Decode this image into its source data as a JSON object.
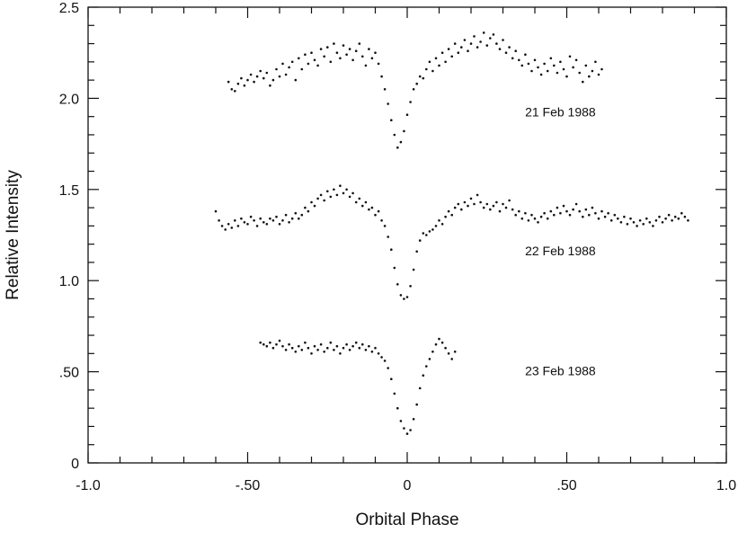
{
  "chart_data": {
    "type": "scatter",
    "title": "",
    "xlabel": "Orbital Phase",
    "ylabel": "Relative Intensity",
    "xlim": [
      -1.0,
      1.0
    ],
    "ylim": [
      0,
      2.5
    ],
    "grid": false,
    "x_ticks": [
      {
        "value": -1.0,
        "label": "-1.0"
      },
      {
        "value": -0.5,
        "label": "-.50"
      },
      {
        "value": 0,
        "label": "0"
      },
      {
        "value": 0.5,
        "label": ".50"
      },
      {
        "value": 1.0,
        "label": "1.0"
      }
    ],
    "y_ticks": [
      {
        "value": 0,
        "label": "0"
      },
      {
        "value": 0.5,
        "label": ".50"
      },
      {
        "value": 1.0,
        "label": "1.0"
      },
      {
        "value": 1.5,
        "label": "1.5"
      },
      {
        "value": 2.0,
        "label": "2.0"
      },
      {
        "value": 2.5,
        "label": "2.5"
      }
    ],
    "series": [
      {
        "name": "21 Feb 1988",
        "label_pos": [
          0.48,
          1.9
        ],
        "x": [
          -0.56,
          -0.55,
          -0.54,
          -0.53,
          -0.52,
          -0.51,
          -0.5,
          -0.49,
          -0.48,
          -0.47,
          -0.46,
          -0.45,
          -0.44,
          -0.43,
          -0.42,
          -0.41,
          -0.4,
          -0.39,
          -0.38,
          -0.37,
          -0.36,
          -0.35,
          -0.34,
          -0.33,
          -0.32,
          -0.31,
          -0.3,
          -0.29,
          -0.28,
          -0.27,
          -0.26,
          -0.25,
          -0.24,
          -0.23,
          -0.22,
          -0.21,
          -0.2,
          -0.19,
          -0.18,
          -0.17,
          -0.16,
          -0.15,
          -0.14,
          -0.13,
          -0.12,
          -0.11,
          -0.1,
          -0.09,
          -0.08,
          -0.07,
          -0.06,
          -0.05,
          -0.04,
          -0.03,
          -0.02,
          -0.01,
          0.0,
          0.01,
          0.02,
          0.03,
          0.04,
          0.05,
          0.06,
          0.07,
          0.08,
          0.09,
          0.1,
          0.11,
          0.12,
          0.13,
          0.14,
          0.15,
          0.16,
          0.17,
          0.18,
          0.19,
          0.2,
          0.21,
          0.22,
          0.23,
          0.24,
          0.25,
          0.26,
          0.27,
          0.28,
          0.29,
          0.3,
          0.31,
          0.32,
          0.33,
          0.34,
          0.35,
          0.36,
          0.37,
          0.38,
          0.39,
          0.4,
          0.41,
          0.42,
          0.43,
          0.44,
          0.45,
          0.46,
          0.47,
          0.48,
          0.49,
          0.5,
          0.51,
          0.52,
          0.53,
          0.54,
          0.55,
          0.56,
          0.57,
          0.58,
          0.59,
          0.6,
          0.61
        ],
        "y": [
          2.09,
          2.05,
          2.04,
          2.08,
          2.11,
          2.07,
          2.1,
          2.13,
          2.09,
          2.12,
          2.15,
          2.11,
          2.14,
          2.07,
          2.1,
          2.16,
          2.12,
          2.19,
          2.13,
          2.17,
          2.2,
          2.1,
          2.22,
          2.16,
          2.24,
          2.19,
          2.25,
          2.21,
          2.18,
          2.27,
          2.23,
          2.28,
          2.2,
          2.3,
          2.25,
          2.22,
          2.29,
          2.24,
          2.27,
          2.21,
          2.26,
          2.3,
          2.23,
          2.18,
          2.27,
          2.22,
          2.25,
          2.19,
          2.12,
          2.05,
          1.97,
          1.88,
          1.8,
          1.73,
          1.76,
          1.82,
          1.91,
          1.98,
          2.05,
          2.08,
          2.12,
          2.11,
          2.16,
          2.2,
          2.15,
          2.22,
          2.18,
          2.25,
          2.2,
          2.27,
          2.23,
          2.3,
          2.25,
          2.28,
          2.32,
          2.26,
          2.3,
          2.34,
          2.28,
          2.31,
          2.36,
          2.29,
          2.33,
          2.35,
          2.3,
          2.27,
          2.32,
          2.25,
          2.28,
          2.22,
          2.26,
          2.21,
          2.18,
          2.24,
          2.19,
          2.15,
          2.21,
          2.17,
          2.13,
          2.19,
          2.15,
          2.22,
          2.18,
          2.14,
          2.2,
          2.16,
          2.12,
          2.23,
          2.17,
          2.21,
          2.14,
          2.09,
          2.18,
          2.12,
          2.15,
          2.2,
          2.13,
          2.16
        ]
      },
      {
        "name": "22 Feb 1988",
        "label_pos": [
          0.48,
          1.14
        ],
        "x": [
          -0.6,
          -0.59,
          -0.58,
          -0.57,
          -0.56,
          -0.55,
          -0.54,
          -0.53,
          -0.52,
          -0.51,
          -0.5,
          -0.49,
          -0.48,
          -0.47,
          -0.46,
          -0.45,
          -0.44,
          -0.43,
          -0.42,
          -0.41,
          -0.4,
          -0.39,
          -0.38,
          -0.37,
          -0.36,
          -0.35,
          -0.34,
          -0.33,
          -0.32,
          -0.31,
          -0.3,
          -0.29,
          -0.28,
          -0.27,
          -0.26,
          -0.25,
          -0.24,
          -0.23,
          -0.22,
          -0.21,
          -0.2,
          -0.19,
          -0.18,
          -0.17,
          -0.16,
          -0.15,
          -0.14,
          -0.13,
          -0.12,
          -0.11,
          -0.1,
          -0.09,
          -0.08,
          -0.07,
          -0.06,
          -0.05,
          -0.04,
          -0.03,
          -0.02,
          -0.01,
          0.0,
          0.01,
          0.02,
          0.03,
          0.04,
          0.05,
          0.06,
          0.07,
          0.08,
          0.09,
          0.1,
          0.11,
          0.12,
          0.13,
          0.14,
          0.15,
          0.16,
          0.17,
          0.18,
          0.19,
          0.2,
          0.21,
          0.22,
          0.23,
          0.24,
          0.25,
          0.26,
          0.27,
          0.28,
          0.29,
          0.3,
          0.31,
          0.32,
          0.33,
          0.34,
          0.35,
          0.36,
          0.37,
          0.38,
          0.39,
          0.4,
          0.41,
          0.42,
          0.43,
          0.44,
          0.45,
          0.46,
          0.47,
          0.48,
          0.49,
          0.5,
          0.51,
          0.52,
          0.53,
          0.54,
          0.55,
          0.56,
          0.57,
          0.58,
          0.59,
          0.6,
          0.61,
          0.62,
          0.63,
          0.64,
          0.65,
          0.66,
          0.67,
          0.68,
          0.69,
          0.7,
          0.71,
          0.72,
          0.73,
          0.74,
          0.75,
          0.76,
          0.77,
          0.78,
          0.79,
          0.8,
          0.81,
          0.82,
          0.83,
          0.84,
          0.85,
          0.86,
          0.87,
          0.88
        ],
        "y": [
          1.38,
          1.33,
          1.3,
          1.28,
          1.31,
          1.29,
          1.33,
          1.3,
          1.34,
          1.32,
          1.31,
          1.35,
          1.33,
          1.3,
          1.34,
          1.32,
          1.31,
          1.34,
          1.33,
          1.35,
          1.31,
          1.33,
          1.36,
          1.32,
          1.34,
          1.37,
          1.34,
          1.36,
          1.4,
          1.38,
          1.43,
          1.41,
          1.45,
          1.47,
          1.44,
          1.49,
          1.46,
          1.5,
          1.47,
          1.52,
          1.48,
          1.5,
          1.46,
          1.48,
          1.43,
          1.45,
          1.41,
          1.43,
          1.39,
          1.4,
          1.36,
          1.38,
          1.33,
          1.3,
          1.24,
          1.17,
          1.07,
          0.98,
          0.92,
          0.9,
          0.91,
          0.97,
          1.06,
          1.16,
          1.22,
          1.26,
          1.25,
          1.27,
          1.28,
          1.3,
          1.33,
          1.31,
          1.35,
          1.38,
          1.36,
          1.4,
          1.42,
          1.39,
          1.43,
          1.41,
          1.45,
          1.42,
          1.47,
          1.43,
          1.4,
          1.42,
          1.39,
          1.41,
          1.43,
          1.38,
          1.42,
          1.4,
          1.44,
          1.39,
          1.36,
          1.38,
          1.34,
          1.37,
          1.33,
          1.36,
          1.34,
          1.32,
          1.35,
          1.37,
          1.34,
          1.38,
          1.36,
          1.4,
          1.37,
          1.41,
          1.38,
          1.36,
          1.39,
          1.42,
          1.38,
          1.35,
          1.39,
          1.36,
          1.4,
          1.37,
          1.34,
          1.38,
          1.35,
          1.37,
          1.33,
          1.36,
          1.34,
          1.32,
          1.35,
          1.31,
          1.34,
          1.32,
          1.3,
          1.33,
          1.31,
          1.34,
          1.32,
          1.3,
          1.33,
          1.35,
          1.32,
          1.34,
          1.36,
          1.33,
          1.35,
          1.34,
          1.37,
          1.35,
          1.33
        ]
      },
      {
        "name": "23 Feb 1988",
        "label_pos": [
          0.48,
          0.48
        ],
        "x": [
          -0.46,
          -0.45,
          -0.44,
          -0.43,
          -0.42,
          -0.41,
          -0.4,
          -0.39,
          -0.38,
          -0.37,
          -0.36,
          -0.35,
          -0.34,
          -0.33,
          -0.32,
          -0.31,
          -0.3,
          -0.29,
          -0.28,
          -0.27,
          -0.26,
          -0.25,
          -0.24,
          -0.23,
          -0.22,
          -0.21,
          -0.2,
          -0.19,
          -0.18,
          -0.17,
          -0.16,
          -0.15,
          -0.14,
          -0.13,
          -0.12,
          -0.11,
          -0.1,
          -0.09,
          -0.08,
          -0.07,
          -0.06,
          -0.05,
          -0.04,
          -0.03,
          -0.02,
          -0.01,
          0.0,
          0.01,
          0.02,
          0.03,
          0.04,
          0.05,
          0.06,
          0.07,
          0.08,
          0.09,
          0.1,
          0.11,
          0.12,
          0.13,
          0.14,
          0.15
        ],
        "y": [
          0.66,
          0.65,
          0.64,
          0.66,
          0.63,
          0.65,
          0.67,
          0.64,
          0.62,
          0.65,
          0.63,
          0.61,
          0.64,
          0.62,
          0.66,
          0.63,
          0.6,
          0.64,
          0.62,
          0.65,
          0.61,
          0.63,
          0.66,
          0.62,
          0.64,
          0.6,
          0.63,
          0.65,
          0.62,
          0.64,
          0.66,
          0.63,
          0.65,
          0.62,
          0.64,
          0.61,
          0.63,
          0.6,
          0.58,
          0.56,
          0.52,
          0.46,
          0.38,
          0.3,
          0.23,
          0.19,
          0.16,
          0.18,
          0.24,
          0.32,
          0.41,
          0.48,
          0.53,
          0.57,
          0.61,
          0.65,
          0.68,
          0.66,
          0.63,
          0.6,
          0.57,
          0.61
        ]
      }
    ]
  }
}
